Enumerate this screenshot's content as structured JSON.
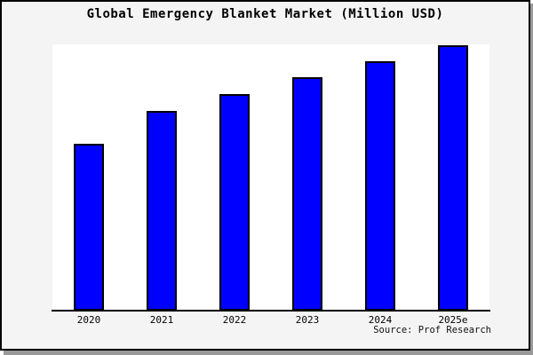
{
  "title": "Global Emergency Blanket Market (Million USD)",
  "source": "Source: Prof Research",
  "frame": {
    "background": "#f4f4f4",
    "plot_background": "#ffffff",
    "border_color": "#000000",
    "shadow_color": "#999999"
  },
  "chart_data": {
    "type": "bar",
    "title": "Global Emergency Blanket Market (Million USD)",
    "categories": [
      "2020",
      "2021",
      "2022",
      "2023",
      "2024",
      "2025e"
    ],
    "values": [
      62.8,
      75.2,
      81.5,
      87.9,
      94.0,
      100.0
    ],
    "units": "relative index, no y-axis labels shown (2025e = 100)",
    "xlabel": "",
    "ylabel": "",
    "ylim": [
      0,
      100.4
    ],
    "grid": false,
    "legend": false,
    "bar_color": "#0000ff",
    "bar_border_color": "#000000"
  }
}
